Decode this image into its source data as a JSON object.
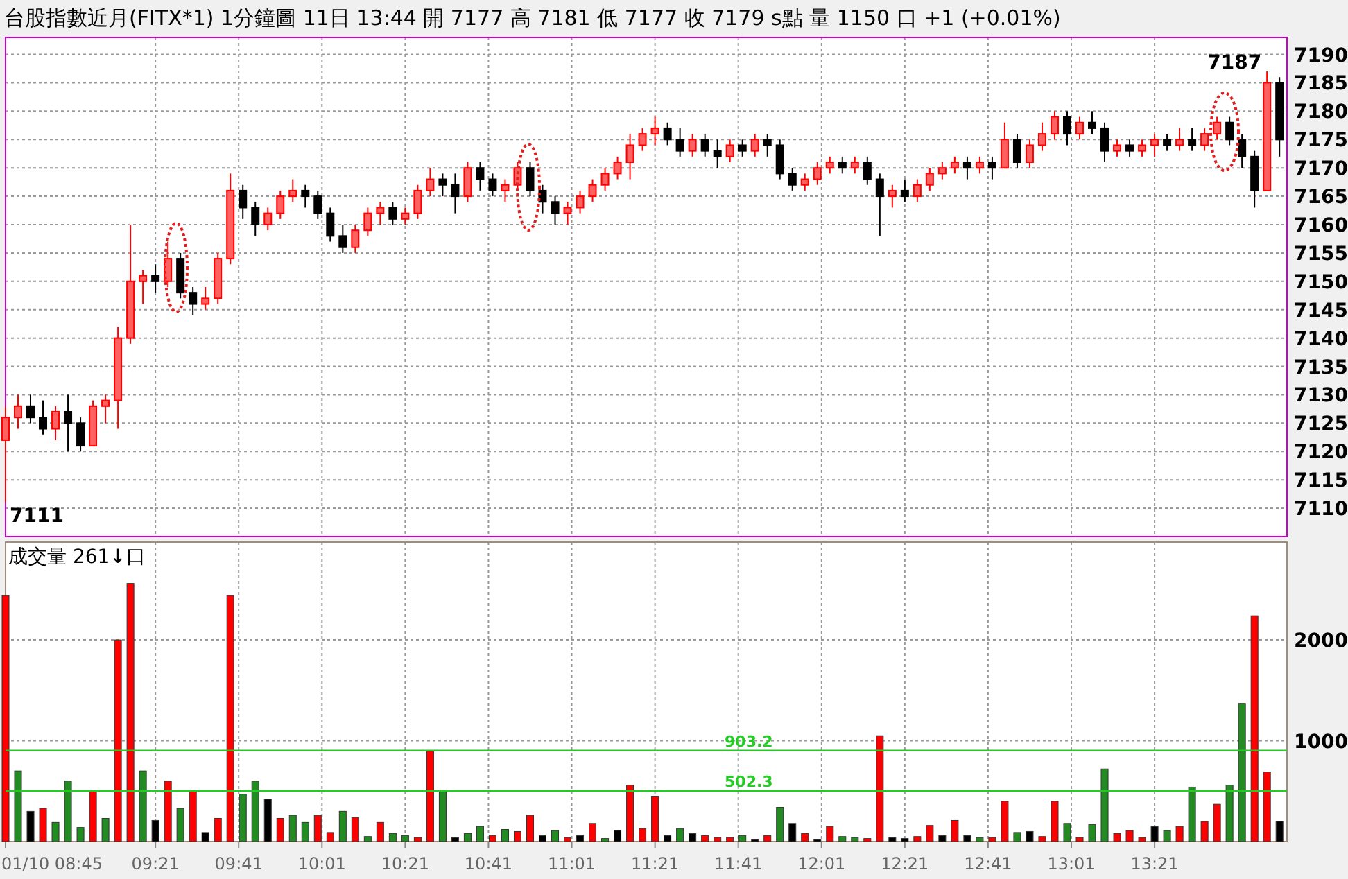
{
  "chart_data": [
    {
      "type": "candlestick",
      "title": "台股指數近月(FITX*1)  1分鐘圖  11日 13:44  開 7177  高 7181  低 7177  收 7179 s點  量 1150 口  +1 (+0.01%)",
      "x": [
        8.75,
        8.8,
        8.85,
        8.9,
        8.95,
        9,
        9.05,
        9.1,
        9.15,
        9.2,
        9.25,
        9.3,
        9.35,
        9.4,
        9.45,
        9.5,
        9.55,
        9.6,
        9.65,
        9.7,
        9.75,
        9.8,
        9.85,
        9.9,
        9.95,
        10,
        10.05,
        10.1,
        10.15,
        10.2,
        10.25,
        10.3,
        10.35,
        10.4,
        10.45,
        10.5,
        10.55,
        10.6,
        10.65,
        10.7,
        10.75,
        10.8,
        10.85,
        10.9,
        10.95,
        11,
        11.05,
        11.1,
        11.15,
        11.2,
        11.25,
        11.3,
        11.35,
        11.4,
        11.45,
        11.5,
        11.55,
        11.6,
        11.65,
        11.7,
        11.75,
        11.8,
        11.85,
        11.9,
        11.95,
        12,
        12.05,
        12.1,
        12.15,
        12.2,
        12.25,
        12.3,
        12.35,
        12.4,
        12.45,
        12.5,
        12.55,
        12.6,
        12.65,
        12.7,
        12.75,
        12.8,
        12.85,
        12.9,
        12.95,
        13,
        13.05,
        13.1,
        13.15,
        13.2,
        13.25,
        13.3,
        13.35,
        13.4,
        13.45,
        13.5,
        13.55,
        13.6,
        13.65,
        13.7,
        13.75,
        13.8,
        13.85
      ],
      "ohlc": [
        [
          7122,
          7128,
          7111,
          7126
        ],
        [
          7126,
          7130,
          7124,
          7128
        ],
        [
          7128,
          7130,
          7125,
          7126
        ],
        [
          7126,
          7129,
          7123,
          7124
        ],
        [
          7124,
          7128,
          7122,
          7127
        ],
        [
          7127,
          7130,
          7120,
          7125
        ],
        [
          7125,
          7126,
          7120,
          7121
        ],
        [
          7121,
          7129,
          7121,
          7128
        ],
        [
          7128,
          7130,
          7125,
          7129
        ],
        [
          7129,
          7142,
          7124,
          7140
        ],
        [
          7140,
          7160,
          7139,
          7150
        ],
        [
          7150,
          7152,
          7146,
          7151
        ],
        [
          7151,
          7153,
          7148,
          7150
        ],
        [
          7150,
          7157,
          7149,
          7154
        ],
        [
          7154,
          7155,
          7147,
          7148
        ],
        [
          7148,
          7149,
          7144,
          7146
        ],
        [
          7146,
          7149,
          7145,
          7147
        ],
        [
          7147,
          7155,
          7146,
          7154
        ],
        [
          7154,
          7169,
          7153,
          7166
        ],
        [
          7166,
          7167,
          7161,
          7163
        ],
        [
          7163,
          7164,
          7158,
          7160
        ],
        [
          7160,
          7163,
          7159,
          7162
        ],
        [
          7162,
          7166,
          7161,
          7165
        ],
        [
          7165,
          7168,
          7164,
          7166
        ],
        [
          7166,
          7167,
          7163,
          7165
        ],
        [
          7165,
          7166,
          7161,
          7162
        ],
        [
          7162,
          7163,
          7157,
          7158
        ],
        [
          7158,
          7160,
          7155,
          7156
        ],
        [
          7156,
          7160,
          7155,
          7159
        ],
        [
          7159,
          7163,
          7158,
          7162
        ],
        [
          7162,
          7164,
          7160,
          7163
        ],
        [
          7163,
          7164,
          7160,
          7161
        ],
        [
          7161,
          7163,
          7160,
          7162
        ],
        [
          7162,
          7167,
          7161,
          7166
        ],
        [
          7166,
          7170,
          7165,
          7168
        ],
        [
          7168,
          7169,
          7165,
          7167
        ],
        [
          7167,
          7169,
          7162,
          7165
        ],
        [
          7165,
          7171,
          7164,
          7170
        ],
        [
          7170,
          7171,
          7166,
          7168
        ],
        [
          7168,
          7169,
          7165,
          7166
        ],
        [
          7166,
          7168,
          7164,
          7167
        ],
        [
          7167,
          7171,
          7166,
          7170
        ],
        [
          7170,
          7171,
          7165,
          7166
        ],
        [
          7166,
          7167,
          7162,
          7164
        ],
        [
          7164,
          7165,
          7160,
          7162
        ],
        [
          7162,
          7164,
          7160,
          7163
        ],
        [
          7163,
          7166,
          7162,
          7165
        ],
        [
          7165,
          7168,
          7164,
          7167
        ],
        [
          7167,
          7170,
          7166,
          7169
        ],
        [
          7169,
          7172,
          7168,
          7171
        ],
        [
          7171,
          7176,
          7168,
          7174
        ],
        [
          7174,
          7177,
          7173,
          7176
        ],
        [
          7176,
          7179,
          7174,
          7177
        ],
        [
          7177,
          7178,
          7174,
          7175
        ],
        [
          7175,
          7177,
          7172,
          7173
        ],
        [
          7173,
          7176,
          7172,
          7175
        ],
        [
          7175,
          7176,
          7172,
          7173
        ],
        [
          7173,
          7175,
          7170,
          7172
        ],
        [
          7172,
          7175,
          7171,
          7174
        ],
        [
          7174,
          7175,
          7172,
          7173
        ],
        [
          7173,
          7176,
          7172,
          7175
        ],
        [
          7175,
          7176,
          7172,
          7174
        ],
        [
          7174,
          7175,
          7168,
          7169
        ],
        [
          7169,
          7170,
          7166,
          7167
        ],
        [
          7167,
          7169,
          7166,
          7168
        ],
        [
          7168,
          7171,
          7167,
          7170
        ],
        [
          7170,
          7172,
          7169,
          7171
        ],
        [
          7171,
          7172,
          7169,
          7170
        ],
        [
          7170,
          7172,
          7169,
          7171
        ],
        [
          7171,
          7172,
          7167,
          7168
        ],
        [
          7168,
          7169,
          7158,
          7165
        ],
        [
          7165,
          7167,
          7163,
          7166
        ],
        [
          7166,
          7168,
          7164,
          7165
        ],
        [
          7165,
          7168,
          7164,
          7167
        ],
        [
          7167,
          7170,
          7166,
          7169
        ],
        [
          7169,
          7171,
          7168,
          7170
        ],
        [
          7170,
          7172,
          7169,
          7171
        ],
        [
          7171,
          7172,
          7168,
          7170
        ],
        [
          7170,
          7172,
          7169,
          7171
        ],
        [
          7171,
          7172,
          7168,
          7170
        ],
        [
          7170,
          7178,
          7170,
          7175
        ],
        [
          7175,
          7176,
          7170,
          7171
        ],
        [
          7171,
          7175,
          7170,
          7174
        ],
        [
          7174,
          7178,
          7173,
          7176
        ],
        [
          7176,
          7180,
          7175,
          7179
        ],
        [
          7179,
          7180,
          7174,
          7176
        ],
        [
          7176,
          7179,
          7175,
          7178
        ],
        [
          7178,
          7180,
          7176,
          7177
        ],
        [
          7177,
          7178,
          7171,
          7173
        ],
        [
          7173,
          7175,
          7172,
          7174
        ],
        [
          7174,
          7175,
          7172,
          7173
        ],
        [
          7173,
          7175,
          7172,
          7174
        ],
        [
          7174,
          7176,
          7172,
          7175
        ],
        [
          7175,
          7176,
          7173,
          7174
        ],
        [
          7174,
          7177,
          7173,
          7175
        ],
        [
          7175,
          7177,
          7173,
          7174
        ],
        [
          7174,
          7177,
          7173,
          7176
        ],
        [
          7176,
          7179,
          7175,
          7178
        ],
        [
          7178,
          7179,
          7174,
          7175
        ],
        [
          7175,
          7176,
          7170,
          7172
        ],
        [
          7172,
          7173,
          7163,
          7166
        ],
        [
          7166,
          7187,
          7166,
          7185
        ],
        [
          7185,
          7186,
          7172,
          7175
        ]
      ],
      "xlim": [
        8.75,
        13.88
      ],
      "xticks": [
        {
          "value": 8.75,
          "label": null
        },
        {
          "value": 9.35,
          "label": null
        },
        {
          "value": 9.6833,
          "label": null
        },
        {
          "value": 10.0167,
          "label": null
        },
        {
          "value": 10.35,
          "label": null
        },
        {
          "value": 10.6833,
          "label": null
        },
        {
          "value": 11.0167,
          "label": null
        },
        {
          "value": 11.35,
          "label": null
        },
        {
          "value": 11.6833,
          "label": null
        },
        {
          "value": 12.0167,
          "label": null
        },
        {
          "value": 12.35,
          "label": null
        },
        {
          "value": 12.6833,
          "label": null
        },
        {
          "value": 13.0167,
          "label": null
        },
        {
          "value": 13.35,
          "label": null
        }
      ],
      "ylim": [
        7105,
        7193
      ],
      "yticks": [
        7110,
        7115,
        7120,
        7125,
        7130,
        7135,
        7140,
        7145,
        7150,
        7155,
        7160,
        7165,
        7170,
        7175,
        7180,
        7185,
        7190
      ],
      "tick_labels": "y",
      "grid": true,
      "annotations": [
        {
          "text": "7187",
          "x": 13.8,
          "y": 7187
        },
        {
          "text": "7111",
          "x": 8.75,
          "y": 7111
        }
      ]
    },
    {
      "type": "bar",
      "x": [
        8.75,
        8.8,
        8.85,
        8.9,
        8.95,
        9,
        9.05,
        9.1,
        9.15,
        9.2,
        9.25,
        9.3,
        9.35,
        9.4,
        9.45,
        9.5,
        9.55,
        9.6,
        9.65,
        9.7,
        9.75,
        9.8,
        9.85,
        9.9,
        9.95,
        10,
        10.05,
        10.1,
        10.15,
        10.2,
        10.25,
        10.3,
        10.35,
        10.4,
        10.45,
        10.5,
        10.55,
        10.6,
        10.65,
        10.7,
        10.75,
        10.8,
        10.85,
        10.9,
        10.95,
        11,
        11.05,
        11.1,
        11.15,
        11.2,
        11.25,
        11.3,
        11.35,
        11.4,
        11.45,
        11.5,
        11.55,
        11.6,
        11.65,
        11.7,
        11.75,
        11.8,
        11.85,
        11.9,
        11.95,
        12,
        12.05,
        12.1,
        12.15,
        12.2,
        12.25,
        12.3,
        12.35,
        12.4,
        12.45,
        12.5,
        12.55,
        12.6,
        12.65,
        12.7,
        12.75,
        12.8,
        12.85,
        12.9,
        12.95,
        13,
        13.05,
        13.1,
        13.15,
        13.2,
        13.25,
        13.3,
        13.35,
        13.4,
        13.45,
        13.5,
        13.55,
        13.6,
        13.65,
        13.7,
        13.75,
        13.8,
        13.85
      ],
      "values": [
        2440,
        700,
        300,
        330,
        190,
        600,
        140,
        500,
        230,
        2000,
        2560,
        700,
        210,
        600,
        330,
        500,
        90,
        230,
        2440,
        470,
        600,
        420,
        230,
        260,
        190,
        260,
        90,
        300,
        240,
        50,
        190,
        80,
        60,
        40,
        900,
        500,
        40,
        80,
        150,
        60,
        120,
        100,
        260,
        60,
        110,
        40,
        60,
        180,
        30,
        110,
        560,
        130,
        450,
        60,
        130,
        80,
        60,
        40,
        40,
        60,
        20,
        60,
        340,
        180,
        80,
        20,
        150,
        50,
        40,
        30,
        1050,
        40,
        30,
        50,
        160,
        60,
        210,
        60,
        40,
        40,
        400,
        90,
        100,
        50,
        400,
        180,
        40,
        170,
        720,
        80,
        110,
        40,
        150,
        110,
        150,
        540,
        200,
        370,
        560,
        1370,
        2240,
        690,
        200
      ],
      "colors": [
        "#ff0000",
        "#228b22",
        "#000000",
        "#ff0000",
        "#228b22",
        "#228b22",
        "#228b22",
        "#ff0000",
        "#228b22",
        "#ff0000",
        "#ff0000",
        "#228b22",
        "#000000",
        "#ff0000",
        "#228b22",
        "#ff0000",
        "#000000",
        "#ff0000",
        "#ff0000",
        "#228b22",
        "#228b22",
        "#000000",
        "#ff0000",
        "#228b22",
        "#228b22",
        "#ff0000",
        "#ff0000",
        "#228b22",
        "#ff0000",
        "#228b22",
        "#ff0000",
        "#228b22",
        "#228b22",
        "#ff0000",
        "#ff0000",
        "#228b22",
        "#000000",
        "#228b22",
        "#228b22",
        "#ff0000",
        "#228b22",
        "#ff0000",
        "#ff0000",
        "#000000",
        "#228b22",
        "#ff0000",
        "#000000",
        "#ff0000",
        "#228b22",
        "#000000",
        "#ff0000",
        "#ff0000",
        "#ff0000",
        "#000000",
        "#228b22",
        "#000000",
        "#ff0000",
        "#ff0000",
        "#ff0000",
        "#228b22",
        "#000000",
        "#ff0000",
        "#228b22",
        "#000000",
        "#ff0000",
        "#000000",
        "#ff0000",
        "#228b22",
        "#228b22",
        "#ff0000",
        "#ff0000",
        "#000000",
        "#000000",
        "#ff0000",
        "#ff0000",
        "#000000",
        "#ff0000",
        "#000000",
        "#228b22",
        "#ff0000",
        "#ff0000",
        "#228b22",
        "#000000",
        "#ff0000",
        "#ff0000",
        "#228b22",
        "#ff0000",
        "#228b22",
        "#228b22",
        "#ff0000",
        "#ff0000",
        "#ff0000",
        "#000000",
        "#228b22",
        "#ff0000",
        "#228b22",
        "#ff0000",
        "#ff0000",
        "#228b22",
        "#228b22",
        "#ff0000",
        "#ff0000",
        "#000000"
      ],
      "xlim": [
        8.75,
        13.88
      ],
      "xticks": [
        {
          "value": 8.75,
          "label": "01/10 08:45"
        },
        {
          "value": 9.35,
          "label": "09:21"
        },
        {
          "value": 9.6833,
          "label": "09:41"
        },
        {
          "value": 10.0167,
          "label": "10:01"
        },
        {
          "value": 10.35,
          "label": "10:21"
        },
        {
          "value": 10.6833,
          "label": "10:41"
        },
        {
          "value": 11.0167,
          "label": "11:01"
        },
        {
          "value": 11.35,
          "label": "11:21"
        },
        {
          "value": 11.6833,
          "label": "11:41"
        },
        {
          "value": 12.0167,
          "label": "12:01"
        },
        {
          "value": 12.35,
          "label": "12:21"
        },
        {
          "value": 12.6833,
          "label": "12:41"
        },
        {
          "value": 13.0167,
          "label": "13:01"
        },
        {
          "value": 13.35,
          "label": "13:21"
        }
      ],
      "ylim": [
        0,
        2970
      ],
      "yticks": [
        1000,
        2000
      ],
      "grid": true,
      "ref_lines": [
        {
          "axis": "y",
          "value": 903.2,
          "label": "903.2",
          "color": "#22cc22"
        },
        {
          "axis": "y",
          "value": 502.3,
          "label": "502.3",
          "color": "#22cc22"
        }
      ],
      "annotations": [
        "成交量 261↓口"
      ]
    }
  ]
}
